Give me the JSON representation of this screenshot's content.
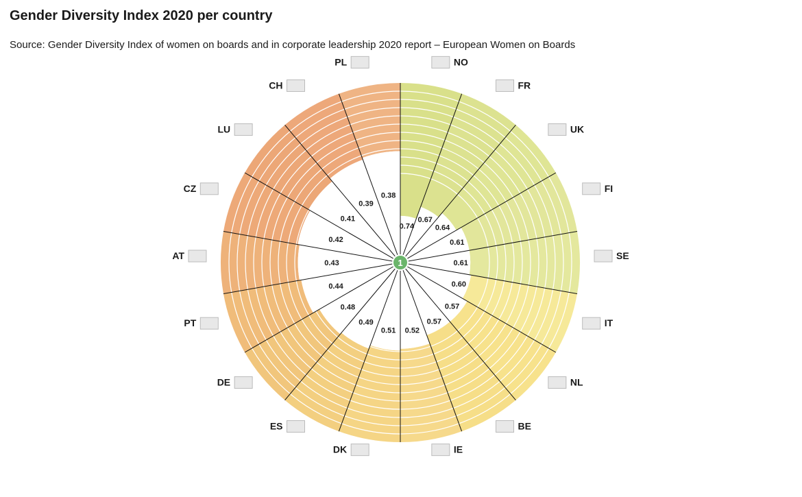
{
  "title": "Gender Diversity Index 2020 per country",
  "source": "Source: Gender Diversity Index of women on boards and in corporate leadership 2020 report – European Women on Boards",
  "chart_data": {
    "type": "radial-bar",
    "title": "Gender Diversity Index 2020 per country",
    "center_label": "1",
    "ring_count": 11,
    "categories": [
      "NO",
      "FR",
      "UK",
      "FI",
      "SE",
      "IT",
      "NL",
      "BE",
      "IE",
      "DK",
      "ES",
      "DE",
      "PT",
      "AT",
      "CZ",
      "LU",
      "CH",
      "PL"
    ],
    "values": [
      0.74,
      0.67,
      0.64,
      0.61,
      0.61,
      0.6,
      0.57,
      0.57,
      0.52,
      0.51,
      0.49,
      0.48,
      0.44,
      0.43,
      0.42,
      0.41,
      0.39,
      0.38
    ],
    "colors": [
      "#d9e08a",
      "#dce290",
      "#dfe595",
      "#e2e69b",
      "#e4e89e",
      "#f6e999",
      "#f7e28c",
      "#f6de88",
      "#f6d98b",
      "#f5d585",
      "#f3cf80",
      "#f1c67c",
      "#f0bc7a",
      "#eeb27a",
      "#eda978",
      "#eca777",
      "#eda87a",
      "#efb484"
    ],
    "grid": true,
    "legend": "none"
  }
}
